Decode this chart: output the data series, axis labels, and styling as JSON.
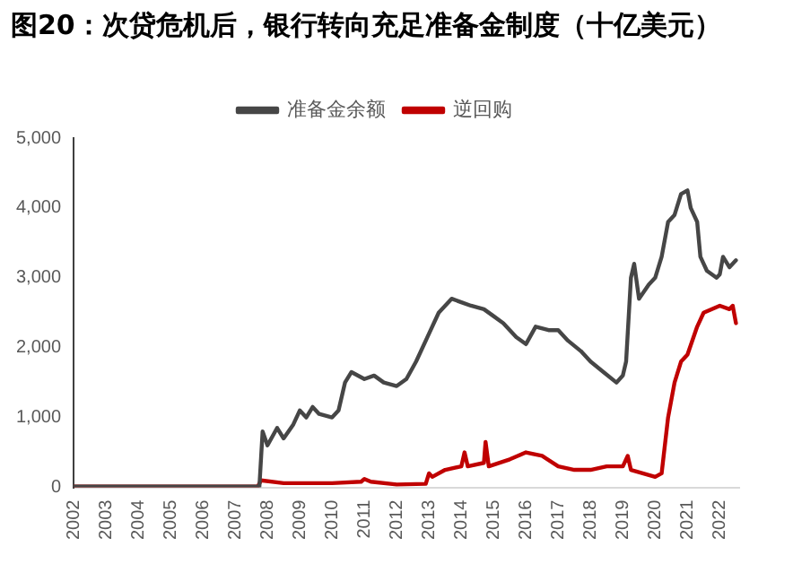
{
  "chart_data": {
    "type": "line",
    "title": "图20：次贷危机后，银行转向充足准备金制度（十亿美元）",
    "legend": "top",
    "grid": false,
    "marker": "none",
    "line_style": "solid",
    "xlim": [
      2002,
      2022.6
    ],
    "xticks": [
      2002,
      2003,
      2004,
      2005,
      2006,
      2007,
      2008,
      2009,
      2010,
      2011,
      2012,
      2013,
      2014,
      2015,
      2016,
      2017,
      2018,
      2019,
      2020,
      2021,
      2022
    ],
    "ylim": [
      0,
      5000
    ],
    "yticks": [
      {
        "value": 0,
        "label": "0"
      },
      {
        "value": 1000,
        "label": "1,000"
      },
      {
        "value": 2000,
        "label": "2,000"
      },
      {
        "value": 3000,
        "label": "3,000"
      },
      {
        "value": 4000,
        "label": "4,000"
      },
      {
        "value": 5000,
        "label": "5,000"
      }
    ],
    "series": [
      {
        "name": "准备金余额",
        "color": "#464646",
        "x": [
          2002,
          2007.75,
          2007.85,
          2008.0,
          2008.3,
          2008.5,
          2008.8,
          2009.0,
          2009.2,
          2009.4,
          2009.6,
          2010.0,
          2010.2,
          2010.4,
          2010.6,
          2011.0,
          2011.3,
          2011.6,
          2012.0,
          2012.3,
          2012.6,
          2013.0,
          2013.3,
          2013.7,
          2014.0,
          2014.3,
          2014.7,
          2015.0,
          2015.3,
          2015.7,
          2016.0,
          2016.3,
          2016.7,
          2017.0,
          2017.3,
          2017.7,
          2018.0,
          2018.4,
          2018.8,
          2019.0,
          2019.1,
          2019.25,
          2019.35,
          2019.5,
          2019.8,
          2020.0,
          2020.2,
          2020.4,
          2020.6,
          2020.8,
          2021.0,
          2021.1,
          2021.3,
          2021.4,
          2021.6,
          2021.9,
          2022.0,
          2022.1,
          2022.3,
          2022.5
        ],
        "values": [
          10,
          10,
          800,
          600,
          850,
          700,
          900,
          1100,
          1000,
          1150,
          1050,
          1000,
          1100,
          1500,
          1650,
          1550,
          1600,
          1500,
          1450,
          1550,
          1800,
          2200,
          2500,
          2700,
          2650,
          2600,
          2550,
          2450,
          2350,
          2150,
          2050,
          2300,
          2250,
          2250,
          2100,
          1950,
          1800,
          1650,
          1500,
          1600,
          1800,
          3000,
          3200,
          2700,
          2900,
          3000,
          3300,
          3800,
          3900,
          4200,
          4250,
          4000,
          3800,
          3300,
          3100,
          3000,
          3050,
          3300,
          3150,
          3250
        ]
      },
      {
        "name": "逆回购",
        "color": "#c00000",
        "x": [
          2002,
          2007.7,
          2007.8,
          2008.5,
          2010.0,
          2010.9,
          2011.0,
          2011.2,
          2012.0,
          2012.9,
          2013.0,
          2013.1,
          2013.5,
          2014.0,
          2014.1,
          2014.2,
          2014.7,
          2014.75,
          2014.85,
          2015.5,
          2016.0,
          2016.5,
          2017.0,
          2017.5,
          2018.0,
          2018.5,
          2019.0,
          2019.15,
          2019.25,
          2020.0,
          2020.2,
          2020.4,
          2020.6,
          2020.8,
          2021.0,
          2021.3,
          2021.5,
          2022.0,
          2022.3,
          2022.4,
          2022.5
        ],
        "values": [
          10,
          10,
          100,
          60,
          60,
          80,
          120,
          80,
          40,
          50,
          200,
          150,
          250,
          300,
          500,
          300,
          350,
          650,
          300,
          400,
          500,
          450,
          300,
          250,
          250,
          300,
          300,
          450,
          250,
          150,
          200,
          1000,
          1500,
          1800,
          1900,
          2300,
          2500,
          2600,
          2550,
          2600,
          2350
        ]
      }
    ]
  }
}
